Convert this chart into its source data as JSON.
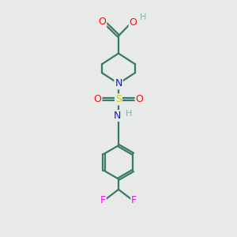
{
  "bg_color": "#e8eae8",
  "bond_color": "#3a7a6a",
  "atom_colors": {
    "O": "#ee1111",
    "N": "#1111ee",
    "S": "#cccc00",
    "F": "#ee11ee",
    "H": "#7ab0b0",
    "C": "#3a7a6a"
  },
  "figsize": [
    3.0,
    3.0
  ],
  "dpi": 100,
  "xlim": [
    0,
    10
  ],
  "ylim": [
    0,
    10
  ]
}
